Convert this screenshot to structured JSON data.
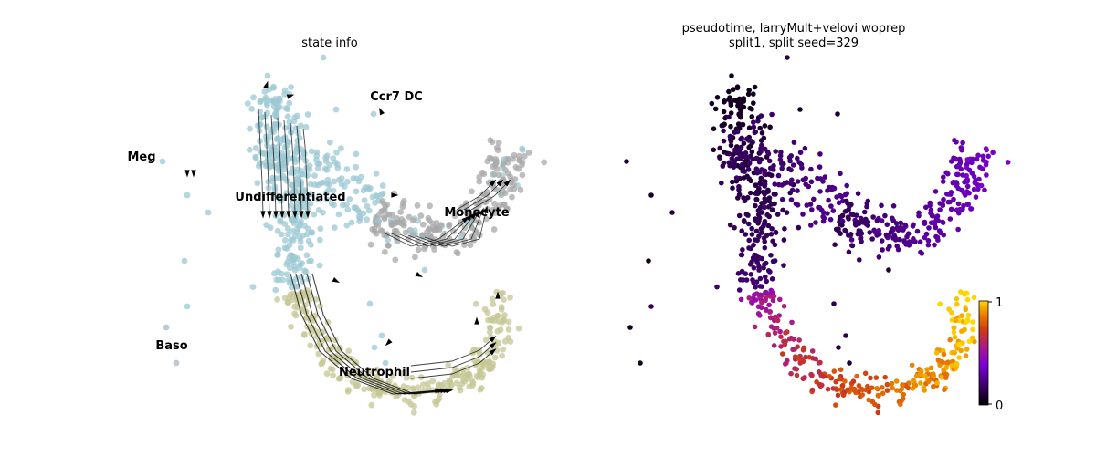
{
  "chart_data": [
    {
      "type": "scatter",
      "title": "state info",
      "xlabel": "",
      "ylabel": "",
      "legend": "on-data",
      "clusters": [
        {
          "name": "Undifferentiated",
          "color": "#9cc8d3"
        },
        {
          "name": "Monocyte",
          "color": "#a8a8a8"
        },
        {
          "name": "Neutrophil",
          "color": "#c5c796"
        },
        {
          "name": "Meg",
          "color": "#9cc8d3"
        },
        {
          "name": "Baso",
          "color": "#a8b8c4"
        },
        {
          "name": "Ccr7 DC",
          "color": "#f5c49a"
        }
      ],
      "overlay": "velocity streamlines with arrowheads",
      "grid": false
    },
    {
      "type": "scatter",
      "title_lines": [
        "pseudotime, larryMult+velovi woprep",
        "split1, split seed=329"
      ],
      "colormap": "gnuplot",
      "colorbar": {
        "min": 0,
        "max": 1,
        "ticks": [
          "0",
          "1"
        ]
      },
      "grid": false
    }
  ]
}
